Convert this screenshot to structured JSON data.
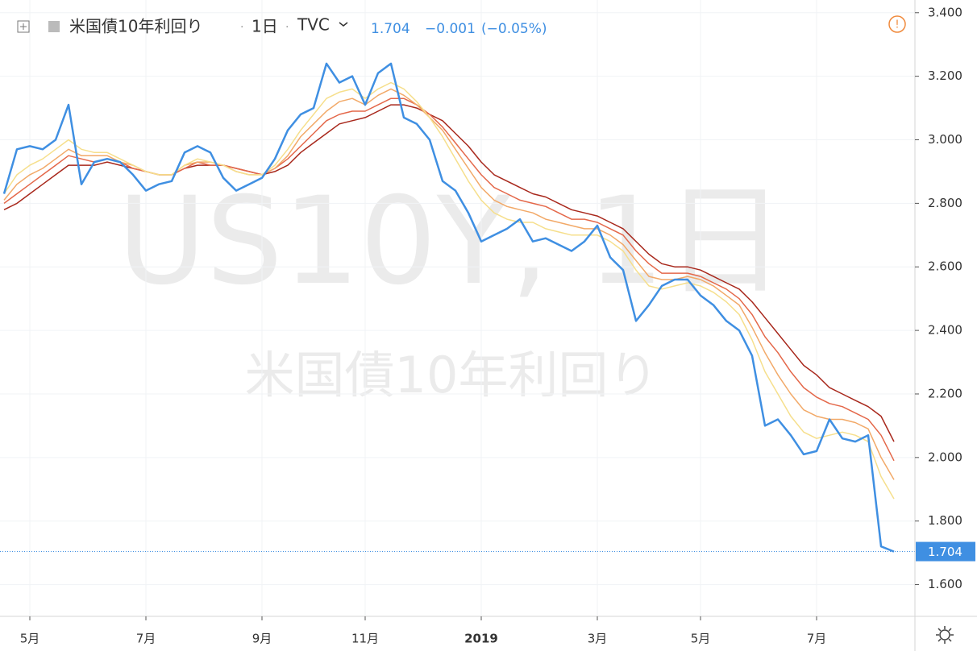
{
  "chart_data": {
    "type": "line",
    "title": "米国債10年利回り",
    "interval": "1日",
    "source": "TVC",
    "last_value": 1.704,
    "change": "−0.001",
    "change_pct": "(−0.05%)",
    "watermark": "US10Y, 1日",
    "watermark_sub": "米国債10年利回り",
    "categories": [
      null,
      null,
      "5月",
      null,
      null,
      null,
      null,
      null,
      null,
      null,
      null,
      "7月",
      null,
      null,
      null,
      null,
      null,
      null,
      null,
      null,
      "9月",
      null,
      null,
      null,
      null,
      null,
      null,
      null,
      "11月",
      null,
      null,
      null,
      null,
      null,
      null,
      null,
      null,
      "2019",
      null,
      null,
      null,
      null,
      null,
      null,
      null,
      null,
      "3月",
      null,
      null,
      null,
      null,
      null,
      null,
      null,
      "5月",
      null,
      null,
      null,
      null,
      null,
      null,
      null,
      null,
      "7月",
      null,
      null,
      null,
      null,
      null,
      null
    ],
    "series": [
      {
        "color": "#a8281c",
        "values": [
          2.78,
          2.8,
          2.83,
          2.86,
          2.89,
          2.92,
          2.92,
          2.92,
          2.93,
          2.92,
          2.91,
          2.9,
          2.89,
          2.89,
          2.91,
          2.92,
          2.92,
          2.92,
          2.91,
          2.9,
          2.89,
          2.9,
          2.92,
          2.96,
          2.99,
          3.02,
          3.05,
          3.06,
          3.07,
          3.09,
          3.11,
          3.11,
          3.1,
          3.08,
          3.06,
          3.02,
          2.98,
          2.93,
          2.89,
          2.87,
          2.85,
          2.83,
          2.82,
          2.8,
          2.78,
          2.77,
          2.76,
          2.74,
          2.72,
          2.68,
          2.64,
          2.61,
          2.6,
          2.6,
          2.59,
          2.57,
          2.55,
          2.53,
          2.49,
          2.44,
          2.39,
          2.34,
          2.29,
          2.26,
          2.22,
          2.2,
          2.18,
          2.16,
          2.13,
          2.05
        ]
      },
      {
        "color": "#e4684a",
        "values": [
          2.8,
          2.83,
          2.86,
          2.89,
          2.92,
          2.95,
          2.94,
          2.93,
          2.94,
          2.93,
          2.91,
          2.9,
          2.89,
          2.89,
          2.91,
          2.93,
          2.92,
          2.92,
          2.91,
          2.9,
          2.89,
          2.91,
          2.94,
          2.98,
          3.02,
          3.06,
          3.08,
          3.09,
          3.09,
          3.11,
          3.13,
          3.13,
          3.11,
          3.08,
          3.04,
          2.99,
          2.94,
          2.89,
          2.85,
          2.83,
          2.81,
          2.8,
          2.79,
          2.77,
          2.75,
          2.75,
          2.74,
          2.72,
          2.7,
          2.65,
          2.61,
          2.58,
          2.58,
          2.58,
          2.57,
          2.55,
          2.53,
          2.5,
          2.45,
          2.38,
          2.33,
          2.27,
          2.22,
          2.19,
          2.17,
          2.16,
          2.14,
          2.12,
          2.07,
          1.99
        ]
      },
      {
        "color": "#f2a968",
        "values": [
          2.81,
          2.86,
          2.89,
          2.91,
          2.94,
          2.97,
          2.95,
          2.95,
          2.95,
          2.93,
          2.92,
          2.9,
          2.89,
          2.89,
          2.92,
          2.93,
          2.93,
          2.92,
          2.9,
          2.89,
          2.89,
          2.91,
          2.95,
          3.01,
          3.05,
          3.09,
          3.12,
          3.13,
          3.11,
          3.14,
          3.16,
          3.14,
          3.11,
          3.07,
          3.03,
          2.97,
          2.91,
          2.85,
          2.81,
          2.79,
          2.78,
          2.77,
          2.75,
          2.74,
          2.73,
          2.72,
          2.72,
          2.7,
          2.67,
          2.62,
          2.57,
          2.56,
          2.56,
          2.57,
          2.56,
          2.54,
          2.51,
          2.48,
          2.41,
          2.33,
          2.26,
          2.2,
          2.15,
          2.13,
          2.12,
          2.12,
          2.11,
          2.09,
          2.0,
          1.93
        ]
      },
      {
        "color": "#f6df8c",
        "values": [
          2.83,
          2.89,
          2.92,
          2.94,
          2.97,
          3.0,
          2.97,
          2.96,
          2.96,
          2.94,
          2.92,
          2.9,
          2.89,
          2.89,
          2.92,
          2.94,
          2.93,
          2.92,
          2.9,
          2.89,
          2.89,
          2.92,
          2.97,
          3.03,
          3.08,
          3.13,
          3.15,
          3.16,
          3.13,
          3.16,
          3.18,
          3.16,
          3.12,
          3.07,
          3.01,
          2.94,
          2.87,
          2.81,
          2.77,
          2.75,
          2.74,
          2.74,
          2.72,
          2.71,
          2.7,
          2.7,
          2.7,
          2.68,
          2.65,
          2.59,
          2.54,
          2.53,
          2.54,
          2.55,
          2.54,
          2.52,
          2.49,
          2.45,
          2.37,
          2.27,
          2.2,
          2.13,
          2.08,
          2.06,
          2.07,
          2.08,
          2.07,
          2.05,
          1.94,
          1.87
        ]
      },
      {
        "name": "米国債10年利回り",
        "color": "#3f8fe2",
        "values": [
          2.83,
          2.97,
          2.98,
          2.97,
          3.0,
          3.11,
          2.86,
          2.93,
          2.94,
          2.93,
          2.89,
          2.84,
          2.86,
          2.87,
          2.96,
          2.98,
          2.96,
          2.88,
          2.84,
          2.86,
          2.88,
          2.94,
          3.03,
          3.08,
          3.1,
          3.24,
          3.18,
          3.2,
          3.11,
          3.21,
          3.24,
          3.07,
          3.05,
          3.0,
          2.87,
          2.84,
          2.77,
          2.68,
          2.7,
          2.72,
          2.75,
          2.68,
          2.69,
          2.67,
          2.65,
          2.68,
          2.73,
          2.63,
          2.59,
          2.43,
          2.48,
          2.54,
          2.56,
          2.56,
          2.51,
          2.48,
          2.43,
          2.4,
          2.32,
          2.1,
          2.12,
          2.07,
          2.01,
          2.02,
          2.12,
          2.06,
          2.05,
          2.07,
          1.72,
          1.704
        ]
      }
    ],
    "ylim": [
      1.5,
      3.44
    ],
    "yticks": [
      {
        "value": 1.6,
        "label": "1.600"
      },
      {
        "value": 1.8,
        "label": "1.800"
      },
      {
        "value": 2.0,
        "label": "2.000"
      },
      {
        "value": 2.2,
        "label": "2.200"
      },
      {
        "value": 2.4,
        "label": "2.400"
      },
      {
        "value": 2.6,
        "label": "2.600"
      },
      {
        "value": 2.8,
        "label": "2.800"
      },
      {
        "value": 3.0,
        "label": "3.000"
      },
      {
        "value": 3.2,
        "label": "3.200"
      },
      {
        "value": 3.4,
        "label": "3.400"
      }
    ],
    "grid": true
  }
}
